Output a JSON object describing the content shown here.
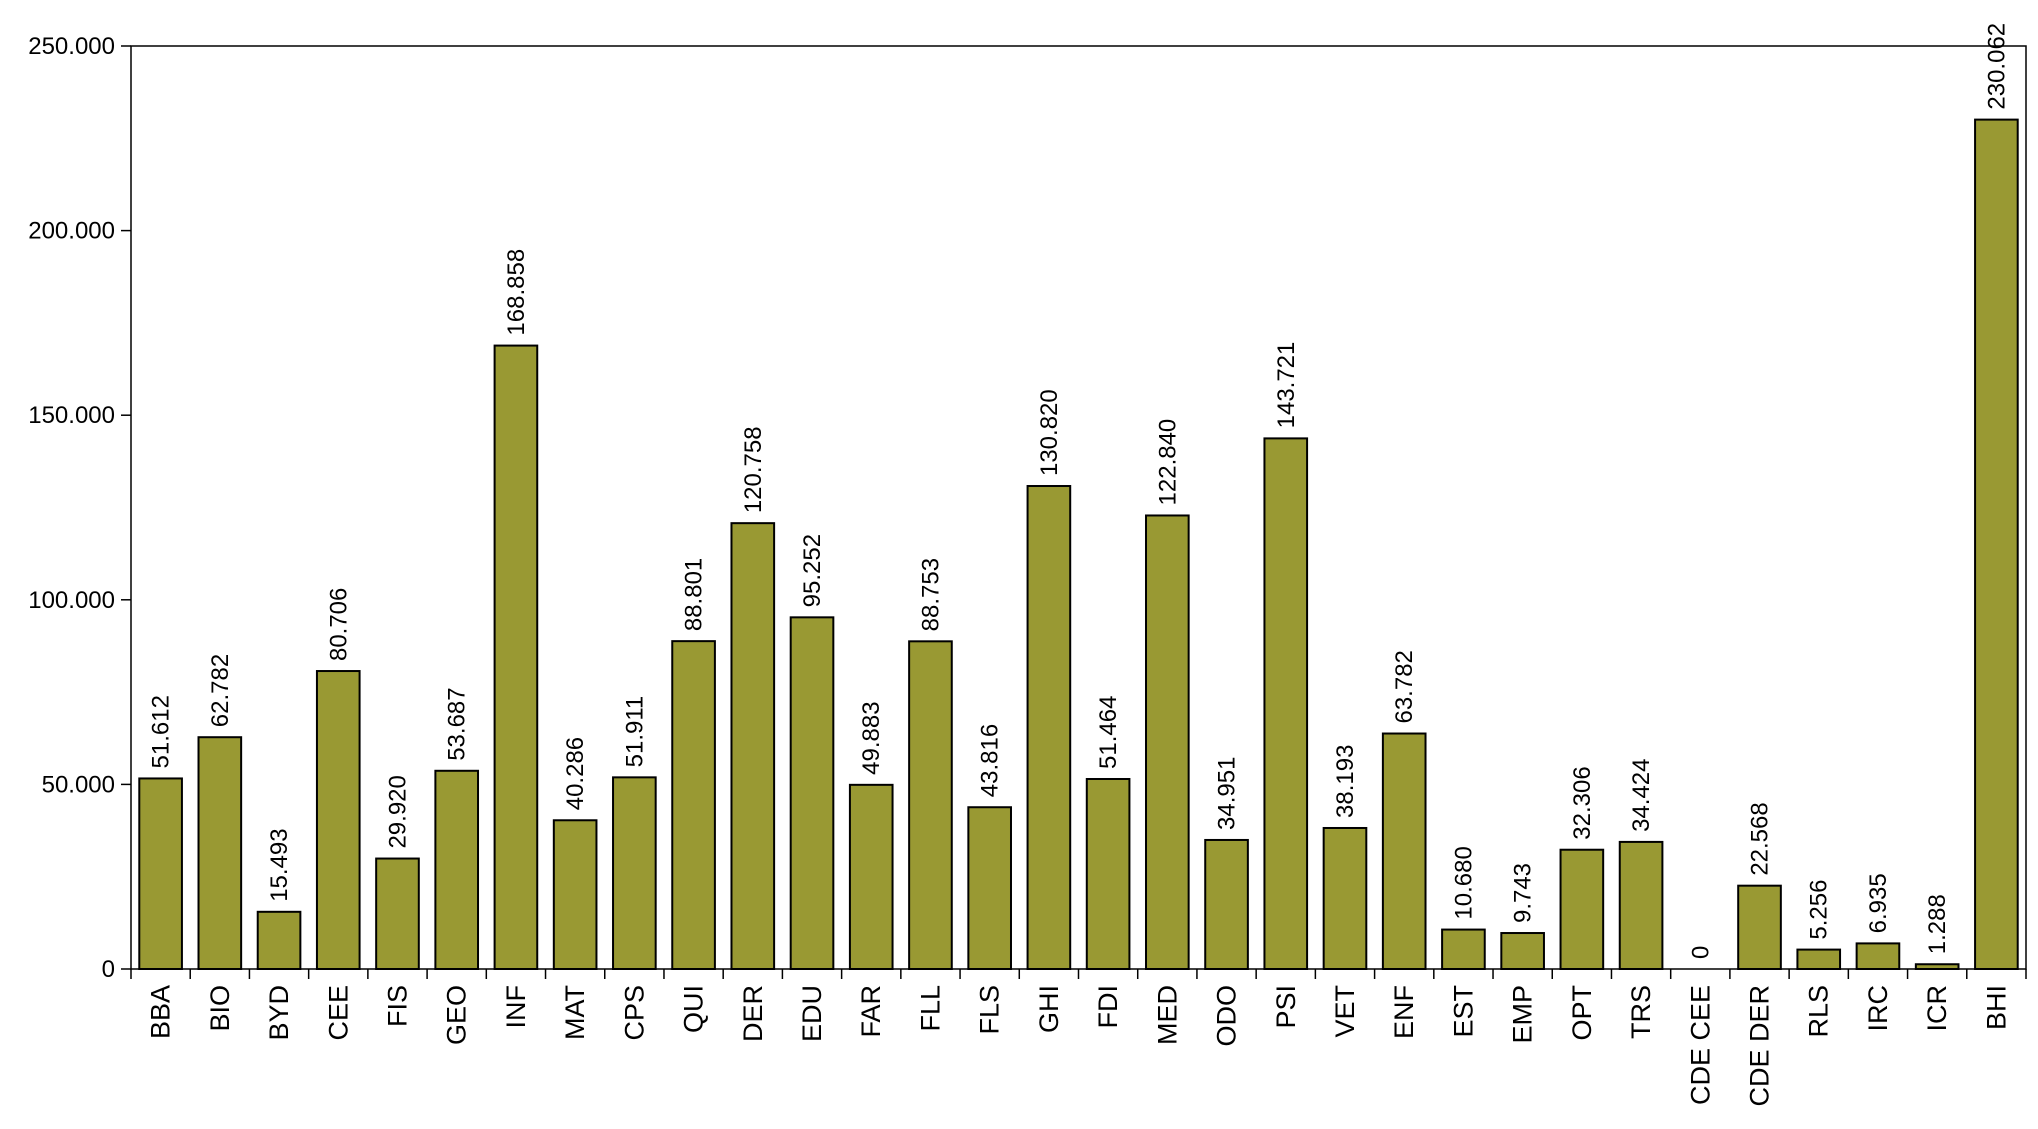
{
  "chart_data": {
    "type": "bar",
    "title": "",
    "xlabel": "",
    "ylabel": "",
    "ylim": [
      0,
      250000
    ],
    "yticks": [
      0,
      50000,
      100000,
      150000,
      200000,
      250000
    ],
    "ytick_labels": [
      "0",
      "50.000",
      "100.000",
      "150.000",
      "200.000",
      "250.000"
    ],
    "grid": false,
    "legend": "none",
    "bar_color": "#999933",
    "categories": [
      "BBA",
      "BIO",
      "BYD",
      "CEE",
      "FIS",
      "GEO",
      "INF",
      "MAT",
      "CPS",
      "QUI",
      "DER",
      "EDU",
      "FAR",
      "FLL",
      "FLS",
      "GHI",
      "FDI",
      "MED",
      "ODO",
      "PSI",
      "VET",
      "ENF",
      "EST",
      "EMP",
      "OPT",
      "TRS",
      "CDE CEE",
      "CDE DER",
      "RLS",
      "IRC",
      "ICR",
      "BHI"
    ],
    "values": [
      51612,
      62782,
      15493,
      80706,
      29920,
      53687,
      168858,
      40286,
      51911,
      88801,
      120758,
      95252,
      49883,
      88753,
      43816,
      130820,
      51464,
      122840,
      34951,
      143721,
      38193,
      63782,
      10680,
      9743,
      32306,
      34424,
      0,
      22568,
      5256,
      6935,
      1288,
      230062
    ],
    "data_labels": [
      "51.612",
      "62.782",
      "15.493",
      "80.706",
      "29.920",
      "53.687",
      "168.858",
      "40.286",
      "51.911",
      "88.801",
      "120.758",
      "95.252",
      "49.883",
      "88.753",
      "43.816",
      "130.820",
      "51.464",
      "122.840",
      "34.951",
      "143.721",
      "38.193",
      "63.782",
      "10.680",
      "9.743",
      "32.306",
      "34.424",
      "0",
      "22.568",
      "5.256",
      "6.935",
      "1.288",
      "230.062"
    ]
  }
}
